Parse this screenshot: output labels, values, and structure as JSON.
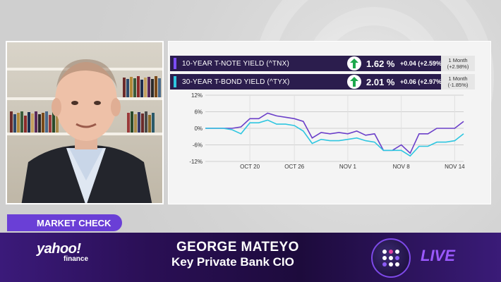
{
  "quotes": [
    {
      "label": "10-YEAR T-NOTE YIELD (^TNX)",
      "value": "1.62 %",
      "change": "+0.04 (+2.59%)",
      "period_label": "1 Month",
      "period_change": "(+2.98%)",
      "color": "#7c4dff",
      "direction": "up-arrow-icon"
    },
    {
      "label": "30-YEAR T-BOND YIELD (^TYX)",
      "value": "2.01 %",
      "change": "+0.06 (+2.97%)",
      "period_label": "1 Month",
      "period_change": "(-1.85%)",
      "color": "#2ec6e0",
      "direction": "up-arrow-icon"
    }
  ],
  "chart_data": {
    "type": "line",
    "x": [
      0,
      1,
      2,
      3,
      4,
      5,
      6,
      7,
      8,
      9,
      10,
      11,
      12,
      13,
      14,
      15,
      16,
      17,
      18,
      19,
      20,
      21,
      22,
      23,
      24,
      25,
      26,
      27,
      28,
      29
    ],
    "x_tick_labels": [
      "OCT 20",
      "OCT 26",
      "NOV 1",
      "NOV 8",
      "NOV 14"
    ],
    "x_tick_positions": [
      5,
      10,
      16,
      22,
      28
    ],
    "y_ticks": [
      "12%",
      "6%",
      "0%",
      "-6%",
      "-12%"
    ],
    "ylim": [
      -12,
      12
    ],
    "grid": true,
    "series": [
      {
        "values": [
          0,
          0,
          0,
          0,
          0.5,
          3.5,
          3.5,
          5.5,
          4.5,
          4,
          3.5,
          2.5,
          -3.5,
          -1.5,
          -2,
          -1.5,
          -2,
          -1,
          -2.5,
          -2,
          -8,
          -8,
          -6,
          -9,
          -2,
          -2,
          0,
          0,
          0,
          2.5
        ],
        "color": "#6b3fc9"
      },
      {
        "values": [
          0,
          0,
          0,
          -0.5,
          -2,
          2,
          2,
          3,
          1.5,
          1.5,
          1,
          -1,
          -5.5,
          -4,
          -4.5,
          -4.5,
          -4,
          -3.5,
          -4.5,
          -5,
          -8,
          -8,
          -8,
          -10,
          -6.5,
          -6.5,
          -5,
          -5,
          -4.5,
          -2
        ],
        "color": "#2ec6e0"
      }
    ]
  },
  "ticker_tag": "MARKET CHECK",
  "logo_main": "yahoo!",
  "logo_sub": "finance",
  "guest_name": "GEORGE MATEYO",
  "guest_title": "Key Private Bank CIO",
  "live_label": "LIVE"
}
